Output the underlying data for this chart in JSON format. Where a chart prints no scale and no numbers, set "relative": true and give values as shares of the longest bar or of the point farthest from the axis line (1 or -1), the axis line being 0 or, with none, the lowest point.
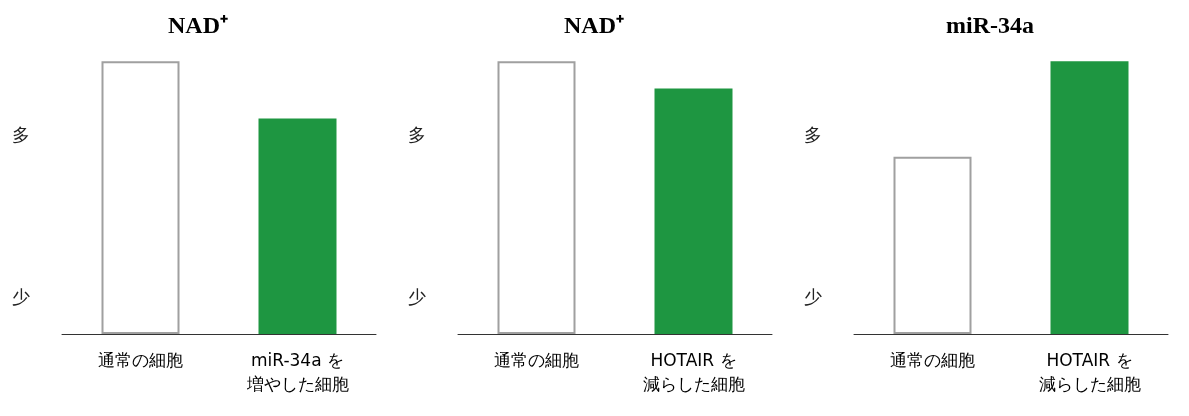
{
  "chart_data": [
    {
      "type": "bar",
      "title": "NAD⁺",
      "categories": [
        "通常の細胞",
        "miR-34a を増やした細胞"
      ],
      "values": [
        1,
        0.79
      ],
      "colors": [
        "#ffffff",
        "#1e9641"
      ],
      "relative": true,
      "annotations": [
        "多",
        "少"
      ]
    },
    {
      "type": "bar",
      "title": "NAD⁺",
      "categories": [
        "通常の細胞",
        "HOTAIR を減らした細胞"
      ],
      "values": [
        1,
        0.9
      ],
      "colors": [
        "#ffffff",
        "#1e9641"
      ],
      "relative": true,
      "annotations": [
        "多",
        "少"
      ]
    },
    {
      "type": "bar",
      "title": "miR-34a",
      "categories": [
        "通常の細胞",
        "HOTAIR を減らした細胞"
      ],
      "values": [
        0.65,
        1
      ],
      "colors": [
        "#ffffff",
        "#1e9641"
      ],
      "relative": true,
      "annotations": [
        "多",
        "少"
      ]
    }
  ]
}
